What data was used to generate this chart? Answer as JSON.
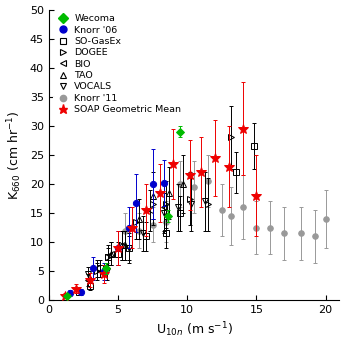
{
  "title": "",
  "xlabel": "U$_{10n}$ (m s$^{-1}$)",
  "ylabel": "K$_{660}$ (cm hr$^{-1}$)",
  "xlim": [
    0,
    21
  ],
  "ylim": [
    0,
    50
  ],
  "xticks": [
    0,
    5,
    10,
    15,
    20
  ],
  "yticks": [
    0,
    5,
    10,
    15,
    20,
    25,
    30,
    35,
    40,
    45,
    50
  ],
  "wecoma": {
    "x": [
      1.3,
      4.1,
      8.6,
      9.5
    ],
    "y": [
      0.8,
      5.5,
      14.5,
      29.0
    ],
    "yerr_lo": [
      0.3,
      1.0,
      1.0,
      1.0
    ],
    "yerr_hi": [
      0.3,
      1.0,
      1.0,
      1.0
    ],
    "color": "#00bb00",
    "marker": "D",
    "label": "Wecoma"
  },
  "knorr06": {
    "x": [
      1.5,
      2.3,
      3.2,
      4.0,
      5.0,
      5.8,
      6.3,
      7.5,
      8.3
    ],
    "y": [
      1.2,
      1.5,
      5.5,
      5.0,
      9.0,
      12.5,
      16.8,
      20.0,
      20.2
    ],
    "yerr_lo": [
      0.5,
      0.5,
      2.0,
      1.5,
      3.0,
      3.5,
      5.0,
      6.0,
      4.0
    ],
    "yerr_hi": [
      0.5,
      0.5,
      2.0,
      1.5,
      3.0,
      3.5,
      5.0,
      6.0,
      4.0
    ],
    "color": "#0000cc",
    "marker": "o",
    "label": "Knorr '06"
  },
  "sogasex": {
    "x": [
      2.2,
      3.0,
      3.7,
      4.3,
      5.0,
      5.8,
      7.0,
      8.5,
      9.5,
      13.5,
      14.8
    ],
    "y": [
      1.5,
      2.5,
      5.5,
      7.5,
      8.0,
      9.0,
      11.0,
      11.5,
      15.0,
      22.0,
      26.5
    ],
    "yerr_lo": [
      0.5,
      0.8,
      1.5,
      1.5,
      2.0,
      2.0,
      2.5,
      2.5,
      3.0,
      3.5,
      4.0
    ],
    "yerr_hi": [
      0.5,
      0.8,
      1.5,
      1.5,
      2.0,
      2.0,
      2.5,
      2.5,
      3.0,
      3.5,
      4.0
    ],
    "color": "#000000",
    "marker": "s",
    "label": "SO-GasEx"
  },
  "dogee": {
    "x": [
      3.5,
      4.3,
      5.3,
      6.3,
      7.5,
      8.5,
      10.2,
      11.5,
      13.2
    ],
    "y": [
      5.0,
      7.5,
      9.5,
      13.5,
      16.5,
      16.5,
      17.5,
      16.5,
      28.0
    ],
    "yerr_lo": [
      1.5,
      2.0,
      2.5,
      3.0,
      3.5,
      4.0,
      4.5,
      4.5,
      5.5
    ],
    "yerr_hi": [
      1.5,
      2.0,
      2.5,
      3.0,
      3.5,
      4.0,
      4.5,
      4.5,
      5.5
    ],
    "color": "#000000",
    "marker": ">",
    "label": "DOGEE"
  },
  "bio": {
    "x": [
      2.8,
      3.5,
      4.5,
      5.3,
      7.3,
      8.3
    ],
    "y": [
      3.5,
      5.5,
      8.0,
      9.5,
      15.5,
      16.0
    ],
    "yerr_lo": [
      1.0,
      1.5,
      2.0,
      2.5,
      3.5,
      4.0
    ],
    "yerr_hi": [
      1.0,
      1.5,
      2.0,
      2.5,
      3.5,
      4.0
    ],
    "color": "#000000",
    "marker": "<",
    "label": "BIO"
  },
  "tao": {
    "x": [
      4.5,
      5.5,
      6.5,
      7.5,
      8.7,
      9.7
    ],
    "y": [
      8.0,
      9.5,
      14.0,
      18.0,
      18.5,
      20.0
    ],
    "yerr_lo": [
      2.0,
      2.5,
      3.5,
      4.0,
      4.5,
      5.0
    ],
    "yerr_hi": [
      2.0,
      2.5,
      3.5,
      4.0,
      4.5,
      5.0
    ],
    "color": "#000000",
    "marker": "^",
    "label": "TAO"
  },
  "vocals": {
    "x": [
      2.8,
      4.2,
      5.8,
      6.8,
      8.3,
      9.3,
      10.3,
      11.3
    ],
    "y": [
      4.5,
      5.0,
      9.0,
      11.5,
      15.0,
      16.0,
      16.5,
      17.0
    ],
    "yerr_lo": [
      1.2,
      1.5,
      2.5,
      3.0,
      3.5,
      4.0,
      4.5,
      5.0
    ],
    "yerr_hi": [
      1.2,
      1.5,
      2.5,
      3.0,
      3.5,
      4.0,
      4.5,
      5.0
    ],
    "color": "#000000",
    "marker": "v",
    "label": "VOCALS"
  },
  "knorr11": {
    "x": [
      5.5,
      6.5,
      7.5,
      8.5,
      9.5,
      10.5,
      11.5,
      12.5,
      13.2,
      14.0,
      15.0,
      16.0,
      17.0,
      18.2,
      19.2,
      20.0
    ],
    "y": [
      12.0,
      12.0,
      13.0,
      13.5,
      20.0,
      19.5,
      20.5,
      15.5,
      14.5,
      16.0,
      12.5,
      12.5,
      11.5,
      11.5,
      11.0,
      14.0
    ],
    "yerr_lo": [
      3.0,
      3.0,
      3.0,
      3.5,
      4.0,
      4.5,
      4.5,
      4.5,
      5.0,
      5.5,
      4.5,
      4.5,
      4.5,
      4.5,
      4.5,
      5.0
    ],
    "yerr_hi": [
      3.0,
      3.0,
      3.0,
      3.5,
      4.0,
      4.5,
      4.5,
      4.5,
      5.0,
      5.5,
      4.5,
      4.5,
      4.5,
      4.5,
      4.5,
      5.0
    ],
    "color": "#999999",
    "marker": "o",
    "label": "Knorr '11"
  },
  "soap": {
    "x": [
      1.2,
      2.0,
      3.0,
      4.0,
      5.0,
      6.0,
      7.0,
      8.0,
      9.0,
      10.2,
      11.0,
      12.0,
      13.0,
      14.0,
      15.0
    ],
    "y": [
      0.8,
      2.0,
      3.5,
      4.5,
      9.0,
      12.5,
      15.5,
      18.5,
      23.5,
      21.5,
      22.0,
      24.5,
      23.0,
      29.5,
      18.0
    ],
    "yerr_lo": [
      0.4,
      0.8,
      1.2,
      1.5,
      3.0,
      3.5,
      4.5,
      5.0,
      6.0,
      6.0,
      6.0,
      6.5,
      7.0,
      8.0,
      7.0
    ],
    "yerr_hi": [
      0.4,
      0.8,
      1.2,
      1.5,
      3.0,
      3.5,
      4.5,
      5.0,
      6.0,
      6.0,
      6.0,
      6.5,
      7.0,
      8.0,
      7.0
    ],
    "color": "#ee0000",
    "marker": "*",
    "label": "SOAP Geometric Mean"
  },
  "bg_color": "#ffffff",
  "tick_fontsize": 8,
  "label_fontsize": 9,
  "legend_fontsize": 6.8
}
